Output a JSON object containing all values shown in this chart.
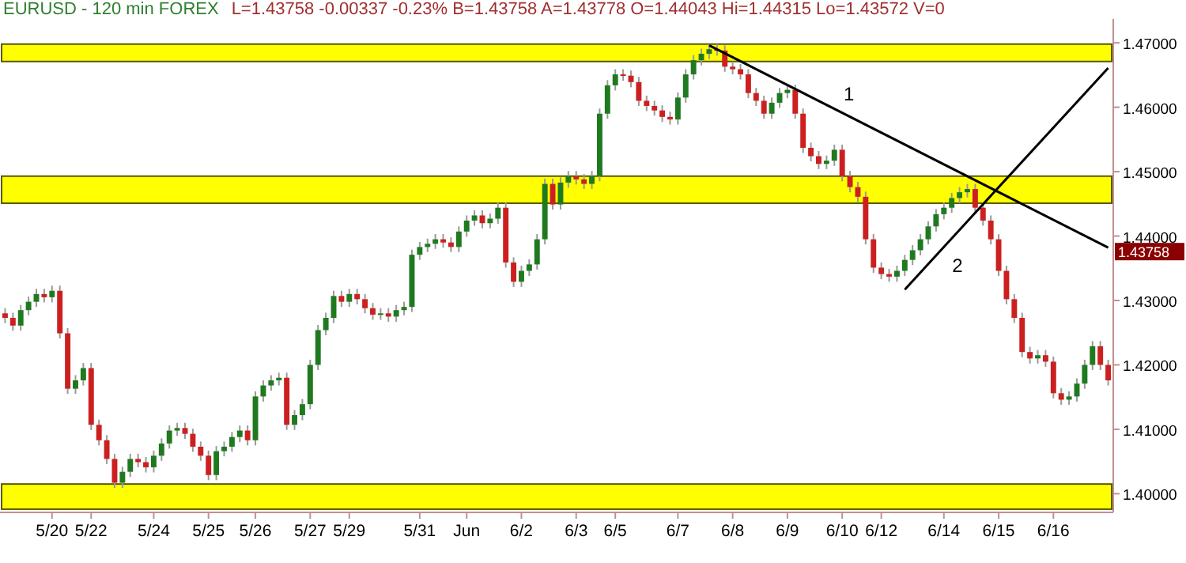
{
  "chart_data": {
    "type": "candlestick",
    "title": "EURUSD - 120 min  FOREX",
    "subtitle": "L=1.43758  -0.00337  -0.23%  B=1.43758  A=1.43778  O=1.44043  Hi=1.44315  Lo=1.43572  V=0",
    "categories": [
      null,
      null,
      null,
      null,
      null,
      null,
      "5/20",
      null,
      null,
      null,
      null,
      "5/22",
      null,
      null,
      null,
      null,
      null,
      null,
      null,
      "5/24",
      null,
      null,
      null,
      null,
      null,
      null,
      "5/25",
      null,
      null,
      null,
      null,
      null,
      "5/26",
      null,
      null,
      null,
      null,
      null,
      null,
      "5/27",
      null,
      null,
      null,
      null,
      "5/29",
      null,
      null,
      null,
      null,
      null,
      null,
      null,
      null,
      "5/31",
      null,
      null,
      null,
      null,
      null,
      "Jun",
      null,
      null,
      null,
      null,
      null,
      null,
      "6/2",
      null,
      null,
      null,
      null,
      null,
      null,
      "6/3",
      null,
      null,
      null,
      null,
      "6/5",
      null,
      null,
      null,
      null,
      null,
      null,
      null,
      "6/7",
      null,
      null,
      null,
      null,
      null,
      null,
      "6/8",
      null,
      null,
      null,
      null,
      null,
      null,
      "6/9",
      null,
      null,
      null,
      null,
      null,
      null,
      "6/10",
      null,
      null,
      null,
      null,
      "6/12",
      null,
      null,
      null,
      null,
      null,
      null,
      null,
      "6/14",
      null,
      null,
      null,
      null,
      null,
      null,
      "6/15",
      null,
      null,
      null,
      null,
      null,
      null,
      "6/16",
      null,
      null,
      null,
      null,
      null,
      null,
      null
    ],
    "ohlc": [
      [
        1.428,
        1.4288,
        1.4265,
        1.4273
      ],
      [
        1.4273,
        1.4281,
        1.4253,
        1.4261
      ],
      [
        1.4261,
        1.4293,
        1.4253,
        1.4285
      ],
      [
        1.4285,
        1.4306,
        1.4277,
        1.4298
      ],
      [
        1.4298,
        1.4318,
        1.429,
        1.431
      ],
      [
        1.431,
        1.4318,
        1.4297,
        1.4305
      ],
      [
        1.4305,
        1.4323,
        1.4297,
        1.4315
      ],
      [
        1.4315,
        1.4323,
        1.4241,
        1.4249
      ],
      [
        1.4249,
        1.4257,
        1.4155,
        1.4163
      ],
      [
        1.4163,
        1.4184,
        1.4155,
        1.4176
      ],
      [
        1.4176,
        1.4203,
        1.4168,
        1.4195
      ],
      [
        1.4195,
        1.4203,
        1.4099,
        1.4107
      ],
      [
        1.4107,
        1.4115,
        1.4075,
        1.4083
      ],
      [
        1.4083,
        1.4091,
        1.4046,
        1.4054
      ],
      [
        1.4054,
        1.4062,
        1.4009,
        1.4017
      ],
      [
        1.4017,
        1.4042,
        1.4009,
        1.4034
      ],
      [
        1.4034,
        1.4062,
        1.4026,
        1.4054
      ],
      [
        1.4054,
        1.4062,
        1.4041,
        1.4049
      ],
      [
        1.4049,
        1.4057,
        1.4033,
        1.4041
      ],
      [
        1.4041,
        1.4067,
        1.4033,
        1.4059
      ],
      [
        1.4059,
        1.4086,
        1.4051,
        1.4078
      ],
      [
        1.4078,
        1.4106,
        1.407,
        1.4098
      ],
      [
        1.4098,
        1.411,
        1.409,
        1.4102
      ],
      [
        1.4102,
        1.411,
        1.4085,
        1.4093
      ],
      [
        1.4093,
        1.4101,
        1.4065,
        1.4073
      ],
      [
        1.4073,
        1.4081,
        1.4051,
        1.4059
      ],
      [
        1.4059,
        1.4067,
        1.4021,
        1.4029
      ],
      [
        1.4029,
        1.4074,
        1.4021,
        1.4066
      ],
      [
        1.4066,
        1.4081,
        1.4058,
        1.4073
      ],
      [
        1.4073,
        1.4096,
        1.4065,
        1.4088
      ],
      [
        1.4088,
        1.4106,
        1.408,
        1.4098
      ],
      [
        1.4098,
        1.4106,
        1.4075,
        1.4083
      ],
      [
        1.4083,
        1.4159,
        1.4075,
        1.4151
      ],
      [
        1.4151,
        1.4176,
        1.4143,
        1.4168
      ],
      [
        1.4168,
        1.4184,
        1.416,
        1.4176
      ],
      [
        1.4176,
        1.4188,
        1.4168,
        1.418
      ],
      [
        1.418,
        1.4188,
        1.4099,
        1.4107
      ],
      [
        1.4107,
        1.413,
        1.4099,
        1.4122
      ],
      [
        1.4122,
        1.4147,
        1.4114,
        1.4139
      ],
      [
        1.4139,
        1.4208,
        1.4131,
        1.42
      ],
      [
        1.42,
        1.4262,
        1.4192,
        1.4254
      ],
      [
        1.4254,
        1.4281,
        1.4246,
        1.4273
      ],
      [
        1.4273,
        1.4315,
        1.4265,
        1.4307
      ],
      [
        1.4307,
        1.4315,
        1.429,
        1.4298
      ],
      [
        1.4298,
        1.4318,
        1.429,
        1.431
      ],
      [
        1.431,
        1.4318,
        1.4294,
        1.4302
      ],
      [
        1.4302,
        1.431,
        1.428,
        1.4288
      ],
      [
        1.4288,
        1.4296,
        1.427,
        1.4278
      ],
      [
        1.4278,
        1.4288,
        1.427,
        1.428
      ],
      [
        1.428,
        1.4288,
        1.4267,
        1.4275
      ],
      [
        1.4275,
        1.4293,
        1.4267,
        1.4285
      ],
      [
        1.4285,
        1.4298,
        1.4277,
        1.429
      ],
      [
        1.429,
        1.4379,
        1.4282,
        1.4371
      ],
      [
        1.4371,
        1.4391,
        1.4363,
        1.4383
      ],
      [
        1.4383,
        1.4396,
        1.4375,
        1.4388
      ],
      [
        1.4388,
        1.4403,
        1.438,
        1.4395
      ],
      [
        1.4395,
        1.4403,
        1.4382,
        1.439
      ],
      [
        1.439,
        1.4398,
        1.4375,
        1.4383
      ],
      [
        1.4383,
        1.4415,
        1.4375,
        1.4407
      ],
      [
        1.4407,
        1.4432,
        1.4399,
        1.4424
      ],
      [
        1.4424,
        1.444,
        1.4416,
        1.4432
      ],
      [
        1.4432,
        1.444,
        1.4412,
        1.442
      ],
      [
        1.442,
        1.4435,
        1.4412,
        1.4427
      ],
      [
        1.4427,
        1.4452,
        1.4419,
        1.4444
      ],
      [
        1.4444,
        1.4452,
        1.4351,
        1.4359
      ],
      [
        1.4359,
        1.4367,
        1.4321,
        1.4329
      ],
      [
        1.4329,
        1.4354,
        1.4321,
        1.4346
      ],
      [
        1.4346,
        1.4364,
        1.4338,
        1.4356
      ],
      [
        1.4356,
        1.4403,
        1.4348,
        1.4395
      ],
      [
        1.4395,
        1.4489,
        1.4387,
        1.4481
      ],
      [
        1.4481,
        1.4489,
        1.4441,
        1.4449
      ],
      [
        1.4449,
        1.4491,
        1.4441,
        1.4483
      ],
      [
        1.4483,
        1.4501,
        1.4475,
        1.4493
      ],
      [
        1.4493,
        1.4501,
        1.448,
        1.4488
      ],
      [
        1.4488,
        1.4496,
        1.4473,
        1.4481
      ],
      [
        1.4481,
        1.4501,
        1.4473,
        1.4493
      ],
      [
        1.4493,
        1.4598,
        1.4485,
        1.459
      ],
      [
        1.459,
        1.4642,
        1.4582,
        1.4634
      ],
      [
        1.4634,
        1.4659,
        1.4626,
        1.4651
      ],
      [
        1.4651,
        1.4659,
        1.4641,
        1.4649
      ],
      [
        1.4649,
        1.4657,
        1.4631,
        1.4639
      ],
      [
        1.4639,
        1.4647,
        1.4602,
        1.461
      ],
      [
        1.461,
        1.4618,
        1.4594,
        1.4602
      ],
      [
        1.4602,
        1.461,
        1.4587,
        1.4595
      ],
      [
        1.4595,
        1.4603,
        1.4577,
        1.4585
      ],
      [
        1.4585,
        1.4593,
        1.4573,
        1.4581
      ],
      [
        1.4581,
        1.4623,
        1.4573,
        1.4615
      ],
      [
        1.4615,
        1.4659,
        1.4607,
        1.4651
      ],
      [
        1.4651,
        1.4681,
        1.4643,
        1.4673
      ],
      [
        1.4673,
        1.4691,
        1.4665,
        1.4683
      ],
      [
        1.4683,
        1.4698,
        1.4675,
        1.469
      ],
      [
        1.469,
        1.4698,
        1.468,
        1.4688
      ],
      [
        1.4688,
        1.4696,
        1.4655,
        1.4663
      ],
      [
        1.4663,
        1.4671,
        1.4651,
        1.4659
      ],
      [
        1.4659,
        1.4667,
        1.4643,
        1.4651
      ],
      [
        1.4651,
        1.4659,
        1.4614,
        1.4622
      ],
      [
        1.4622,
        1.463,
        1.4602,
        1.461
      ],
      [
        1.461,
        1.4618,
        1.4582,
        1.459
      ],
      [
        1.459,
        1.4615,
        1.4582,
        1.4607
      ],
      [
        1.4607,
        1.463,
        1.4599,
        1.4622
      ],
      [
        1.4622,
        1.4635,
        1.4614,
        1.4627
      ],
      [
        1.4627,
        1.4635,
        1.4582,
        1.459
      ],
      [
        1.459,
        1.4598,
        1.4529,
        1.4537
      ],
      [
        1.4537,
        1.4545,
        1.4516,
        1.4524
      ],
      [
        1.4524,
        1.4532,
        1.4504,
        1.4512
      ],
      [
        1.4512,
        1.4525,
        1.4504,
        1.4517
      ],
      [
        1.4517,
        1.4542,
        1.4509,
        1.4534
      ],
      [
        1.4534,
        1.4542,
        1.4485,
        1.4493
      ],
      [
        1.4493,
        1.4501,
        1.4468,
        1.4476
      ],
      [
        1.4476,
        1.4484,
        1.4453,
        1.4461
      ],
      [
        1.4461,
        1.4469,
        1.4387,
        1.4395
      ],
      [
        1.4395,
        1.4403,
        1.4343,
        1.4351
      ],
      [
        1.4351,
        1.4359,
        1.4333,
        1.4341
      ],
      [
        1.4341,
        1.4349,
        1.4329,
        1.4337
      ],
      [
        1.4337,
        1.4354,
        1.4329,
        1.4346
      ],
      [
        1.4346,
        1.4371,
        1.4338,
        1.4363
      ],
      [
        1.4363,
        1.4386,
        1.4355,
        1.4378
      ],
      [
        1.4378,
        1.4403,
        1.437,
        1.4395
      ],
      [
        1.4395,
        1.4423,
        1.4387,
        1.4415
      ],
      [
        1.4415,
        1.4442,
        1.4407,
        1.4434
      ],
      [
        1.4434,
        1.4452,
        1.4426,
        1.4444
      ],
      [
        1.4444,
        1.4467,
        1.4436,
        1.4459
      ],
      [
        1.4459,
        1.4476,
        1.4451,
        1.4468
      ],
      [
        1.4468,
        1.4481,
        1.446,
        1.4473
      ],
      [
        1.4473,
        1.4481,
        1.4436,
        1.4444
      ],
      [
        1.4444,
        1.4452,
        1.4416,
        1.4424
      ],
      [
        1.4424,
        1.4432,
        1.4387,
        1.4395
      ],
      [
        1.4395,
        1.4403,
        1.4338,
        1.4346
      ],
      [
        1.4346,
        1.4354,
        1.4294,
        1.4302
      ],
      [
        1.4302,
        1.431,
        1.4265,
        1.4273
      ],
      [
        1.4273,
        1.4281,
        1.4212,
        1.422
      ],
      [
        1.422,
        1.4228,
        1.4202,
        1.421
      ],
      [
        1.421,
        1.4223,
        1.4202,
        1.4215
      ],
      [
        1.4215,
        1.4223,
        1.4197,
        1.4205
      ],
      [
        1.4205,
        1.4213,
        1.4148,
        1.4156
      ],
      [
        1.4156,
        1.4164,
        1.4138,
        1.4146
      ],
      [
        1.4146,
        1.4159,
        1.4138,
        1.4151
      ],
      [
        1.4151,
        1.4179,
        1.4143,
        1.4171
      ],
      [
        1.4171,
        1.4208,
        1.4163,
        1.42
      ],
      [
        1.42,
        1.4237,
        1.4192,
        1.4229
      ],
      [
        1.4229,
        1.4237,
        1.4192,
        1.42
      ],
      [
        1.42,
        1.4208,
        1.4168,
        1.4176
      ]
    ],
    "series": [
      {
        "type": "line",
        "color": "#000000",
        "values": [
          null,
          null,
          null,
          null,
          null,
          null,
          null,
          null,
          null,
          null,
          null,
          null,
          null,
          null,
          null,
          null,
          null,
          null,
          null,
          null,
          null,
          null,
          null,
          null,
          null,
          null,
          null,
          null,
          null,
          null,
          null,
          null,
          null,
          null,
          null,
          null,
          null,
          null,
          null,
          null,
          null,
          null,
          null,
          null,
          null,
          null,
          null,
          null,
          null,
          null,
          null,
          null,
          null,
          null,
          null,
          null,
          null,
          null,
          null,
          null,
          null,
          null,
          null,
          null,
          null,
          null,
          null,
          null,
          null,
          null,
          null,
          null,
          null,
          null,
          null,
          null,
          null,
          null,
          null,
          null,
          null,
          null,
          null,
          null,
          null,
          null,
          null,
          null,
          null,
          null,
          1.4696,
          null,
          null,
          null,
          null,
          null,
          null,
          null,
          null,
          null,
          null,
          null,
          null,
          null,
          null,
          null,
          null,
          null,
          null,
          null,
          null,
          null,
          null,
          null,
          null,
          null,
          null,
          null,
          null,
          null,
          null,
          null,
          null,
          null,
          null,
          null,
          null,
          null,
          null,
          null,
          null,
          null,
          null,
          null,
          null,
          null,
          null,
          null,
          null,
          null,
          null,
          1.4382
        ]
      },
      {
        "type": "line",
        "color": "#000000",
        "values": [
          null,
          null,
          null,
          null,
          null,
          null,
          null,
          null,
          null,
          null,
          null,
          null,
          null,
          null,
          null,
          null,
          null,
          null,
          null,
          null,
          null,
          null,
          null,
          null,
          null,
          null,
          null,
          null,
          null,
          null,
          null,
          null,
          null,
          null,
          null,
          null,
          null,
          null,
          null,
          null,
          null,
          null,
          null,
          null,
          null,
          null,
          null,
          null,
          null,
          null,
          null,
          null,
          null,
          null,
          null,
          null,
          null,
          null,
          null,
          null,
          null,
          null,
          null,
          null,
          null,
          null,
          null,
          null,
          null,
          null,
          null,
          null,
          null,
          null,
          null,
          null,
          null,
          null,
          null,
          null,
          null,
          null,
          null,
          null,
          null,
          null,
          null,
          null,
          null,
          null,
          null,
          null,
          null,
          null,
          null,
          null,
          null,
          null,
          null,
          null,
          null,
          null,
          null,
          null,
          null,
          null,
          null,
          null,
          null,
          null,
          null,
          null,
          null,
          null,
          null,
          1.4317,
          null,
          null,
          null,
          null,
          null,
          null,
          null,
          null,
          null,
          null,
          null,
          null,
          null,
          null,
          null,
          null,
          null,
          null,
          null,
          null,
          null,
          null,
          null,
          null,
          null,
          1.4661
        ]
      }
    ],
    "bands": [
      {
        "axis": "y",
        "from": 1.4671,
        "to": 1.4698,
        "color": "#ffff00"
      },
      {
        "axis": "y",
        "from": 1.4451,
        "to": 1.4493,
        "color": "#ffff00"
      },
      {
        "axis": "y",
        "from": 1.3976,
        "to": 1.4015,
        "color": "#ffff00"
      }
    ],
    "annotations": [
      "1",
      "2",
      "1.43758"
    ],
    "ylim": [
      1.3971,
      1.4737
    ],
    "yticks": [
      {
        "value": 1.4,
        "label": "1.40000"
      },
      {
        "value": 1.41,
        "label": "1.41000"
      },
      {
        "value": 1.42,
        "label": "1.42000"
      },
      {
        "value": 1.43,
        "label": "1.43000"
      },
      {
        "value": 1.44,
        "label": "1.44000"
      },
      {
        "value": 1.45,
        "label": "1.45000"
      },
      {
        "value": 1.46,
        "label": "1.46000"
      },
      {
        "value": 1.47,
        "label": "1.47000"
      }
    ],
    "grid": false
  }
}
